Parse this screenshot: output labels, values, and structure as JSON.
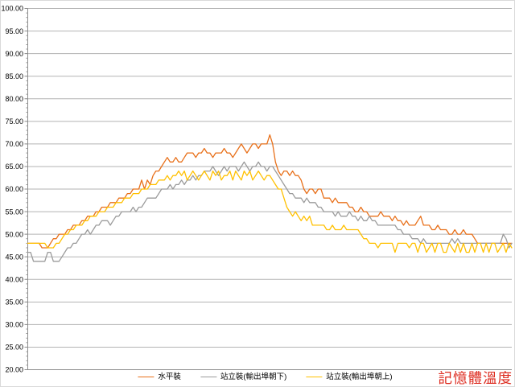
{
  "chart_data": {
    "type": "line",
    "title": "",
    "xlabel": "",
    "ylabel": "",
    "ylim": [
      20,
      100
    ],
    "y_tick_step": 5,
    "y_tick_labels": [
      "100.00",
      "95.00",
      "90.00",
      "85.00",
      "80.00",
      "75.00",
      "70.00",
      "65.00",
      "60.00",
      "55.00",
      "50.00",
      "45.00",
      "40.00",
      "35.00",
      "30.00",
      "25.00",
      "20.00"
    ],
    "x_tick_labels_visible": false,
    "grid": "horizontal",
    "legend_position": "bottom",
    "series": [
      {
        "name": "水平裝",
        "color": "#e8701a",
        "values": [
          48,
          48,
          48,
          48,
          48,
          47,
          47,
          47,
          48,
          49,
          49,
          50,
          50,
          50,
          51,
          51,
          52,
          52,
          52,
          53,
          53,
          54,
          54,
          54,
          55,
          55,
          56,
          56,
          56,
          57,
          57,
          57,
          58,
          58,
          58,
          59,
          59,
          60,
          60,
          60,
          62,
          60,
          62,
          61,
          63,
          64,
          64,
          65,
          66,
          67,
          66,
          66,
          67,
          66,
          66,
          67,
          68,
          68,
          68,
          67,
          68,
          68,
          69,
          68,
          68,
          67,
          68,
          68,
          68,
          69,
          68,
          68,
          67,
          68,
          69,
          70,
          69,
          68,
          69,
          70,
          70,
          69,
          70,
          70,
          70,
          72,
          70,
          66,
          64,
          63,
          64,
          64,
          63,
          64,
          63,
          63,
          62,
          60,
          59,
          60,
          60,
          59,
          60,
          60,
          58,
          58,
          58,
          57,
          58,
          57,
          57,
          57,
          57,
          56,
          56,
          55,
          55,
          56,
          55,
          55,
          54,
          54,
          54,
          54,
          55,
          54,
          54,
          54,
          53,
          54,
          53,
          53,
          52,
          53,
          52,
          52,
          52,
          53,
          54,
          52,
          52,
          52,
          51,
          51,
          52,
          51,
          51,
          51,
          50,
          50,
          51,
          50,
          50,
          51,
          50,
          50,
          50,
          49,
          48,
          48,
          48,
          48,
          48,
          48,
          48,
          48,
          48,
          48,
          48,
          48,
          48
        ]
      },
      {
        "name": "站立裝(輸出埠朝下)",
        "color": "#9b9b9b",
        "values": [
          46,
          46,
          44,
          44,
          44,
          44,
          44,
          46,
          46,
          44,
          44,
          44,
          45,
          46,
          47,
          47,
          48,
          48,
          49,
          50,
          50,
          51,
          50,
          51,
          52,
          52,
          53,
          53,
          53,
          52,
          53,
          54,
          54,
          55,
          55,
          55,
          55,
          56,
          55,
          56,
          56,
          57,
          58,
          58,
          58,
          58,
          59,
          60,
          60,
          60,
          61,
          60,
          61,
          61,
          62,
          61,
          62,
          62,
          63,
          62,
          63,
          63,
          64,
          64,
          64,
          65,
          64,
          63,
          64,
          65,
          64,
          65,
          65,
          65,
          64,
          65,
          66,
          65,
          64,
          65,
          65,
          66,
          65,
          65,
          64,
          65,
          65,
          64,
          63,
          62,
          61,
          60,
          59,
          59,
          58,
          58,
          58,
          57,
          58,
          57,
          57,
          57,
          56,
          56,
          55,
          55,
          55,
          55,
          54,
          55,
          54,
          54,
          54,
          55,
          54,
          54,
          53,
          54,
          53,
          53,
          54,
          53,
          53,
          52,
          52,
          52,
          52,
          52,
          52,
          52,
          51,
          51,
          50,
          50,
          50,
          49,
          49,
          49,
          48,
          49,
          48,
          48,
          48,
          48,
          48,
          48,
          48,
          48,
          48,
          49,
          48,
          49,
          48,
          48,
          48,
          48,
          48,
          48,
          48,
          48,
          48,
          48,
          48,
          48,
          48,
          48,
          48,
          50,
          49,
          47,
          48
        ]
      },
      {
        "name": "站立裝(輸出埠朝上)",
        "color": "#ffc000",
        "values": [
          48,
          48,
          48,
          48,
          48,
          48,
          48,
          47,
          47,
          47,
          48,
          48,
          49,
          50,
          50,
          51,
          51,
          52,
          52,
          52,
          53,
          53,
          54,
          54,
          54,
          55,
          55,
          55,
          56,
          56,
          56,
          57,
          57,
          57,
          58,
          58,
          58,
          59,
          59,
          59,
          60,
          60,
          60,
          61,
          61,
          61,
          62,
          62,
          62,
          63,
          62,
          63,
          63,
          64,
          63,
          64,
          62,
          63,
          64,
          63,
          62,
          63,
          64,
          63,
          62,
          64,
          63,
          64,
          62,
          63,
          63,
          64,
          62,
          64,
          63,
          62,
          64,
          63,
          64,
          62,
          63,
          64,
          63,
          62,
          63,
          63,
          62,
          61,
          60,
          60,
          58,
          56,
          55,
          54,
          55,
          54,
          53,
          54,
          53,
          54,
          52,
          52,
          52,
          52,
          52,
          51,
          51,
          52,
          51,
          51,
          51,
          52,
          51,
          51,
          51,
          51,
          51,
          50,
          49,
          49,
          48,
          48,
          48,
          47,
          48,
          48,
          48,
          48,
          48,
          46,
          48,
          48,
          48,
          48,
          47,
          48,
          48,
          46,
          48,
          48,
          46,
          47,
          48,
          46,
          48,
          48,
          46,
          46,
          48,
          47,
          46,
          48,
          46,
          48,
          46,
          46,
          48,
          46,
          48,
          48,
          46,
          48,
          46,
          48,
          48,
          46,
          47,
          48,
          46,
          48,
          47
        ]
      }
    ]
  },
  "annotation": {
    "text": "記憶體溫度",
    "color": "#dd2b1f"
  },
  "colors": {
    "gridline": "#b3b3b3",
    "axis": "#8c8c8c",
    "background": "#ffffff",
    "tick_label": "#000000"
  }
}
